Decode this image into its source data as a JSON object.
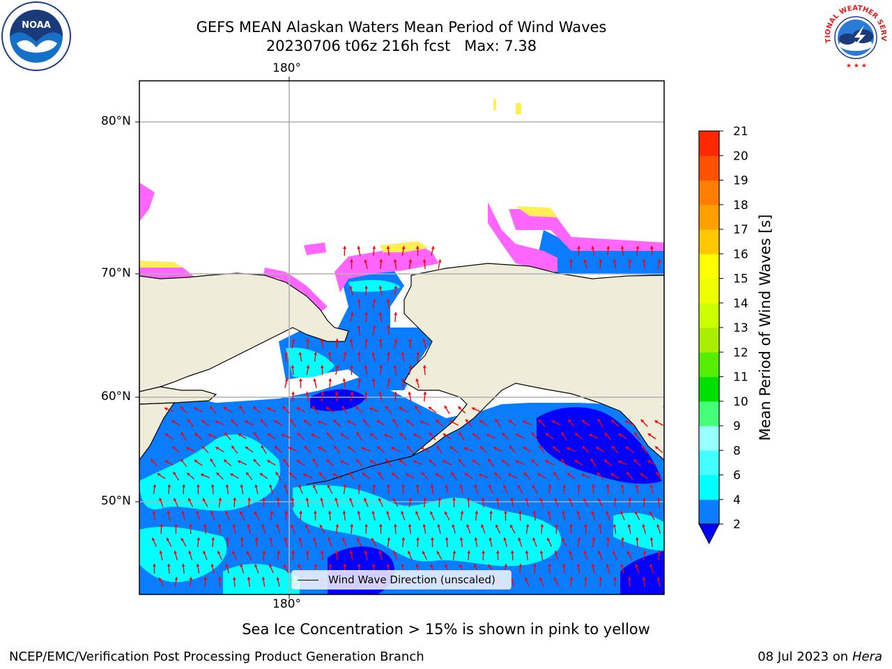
{
  "header": {
    "title_line1": "GEFS MEAN Alaskan Waters Mean Period of Wind Waves",
    "title_line2": "20230706 t06z 216h fcst   Max: 7.38"
  },
  "logos": {
    "left_icon": "noaa-logo-icon",
    "right_icon": "nws-logo-icon",
    "left_text": "NOAA",
    "right_ring_text": "NATIONAL WEATHER SERVICE"
  },
  "map": {
    "lon_label_top": "180°",
    "lon_label_bottom": "180°",
    "lat_labels": [
      "80°N",
      "70°N",
      "60°N",
      "50°N"
    ],
    "legend_label": "Wind Wave Direction (unscaled)",
    "colors": {
      "land": "#efedd9",
      "ocean_low": "#0a7cff",
      "ocean_mid": "#00ffff",
      "ocean_deep": "#0000ff",
      "ice_pink": "#ff66ff",
      "ice_yellow": "#ffee55",
      "arrows": "#ff0000",
      "grid": "#b0b0b0"
    }
  },
  "colorbar": {
    "title": "Mean Period of Wind Waves [s]",
    "ticks": [
      "2",
      "4",
      "6",
      "8",
      "9",
      "10",
      "11",
      "12",
      "13",
      "14",
      "15",
      "16",
      "17",
      "18",
      "19",
      "20",
      "21"
    ],
    "colors": [
      "#0a7cff",
      "#00ffff",
      "#44ffff",
      "#99ffff",
      "#44ff77",
      "#00e000",
      "#55ee00",
      "#aaee00",
      "#ccff00",
      "#eeff00",
      "#ffff00",
      "#ffc800",
      "#ffa000",
      "#ff7d00",
      "#ff5000",
      "#ff2800",
      "#ff0000"
    ],
    "under_color": "#0000ff"
  },
  "notes": {
    "ice_note": "Sea Ice Concentration > 15% is shown in pink to yellow",
    "footer_left": "NCEP/EMC/Verification Post Processing Product Generation Branch",
    "footer_date": "08 Jul 2023 on ",
    "footer_host": "Hera"
  }
}
